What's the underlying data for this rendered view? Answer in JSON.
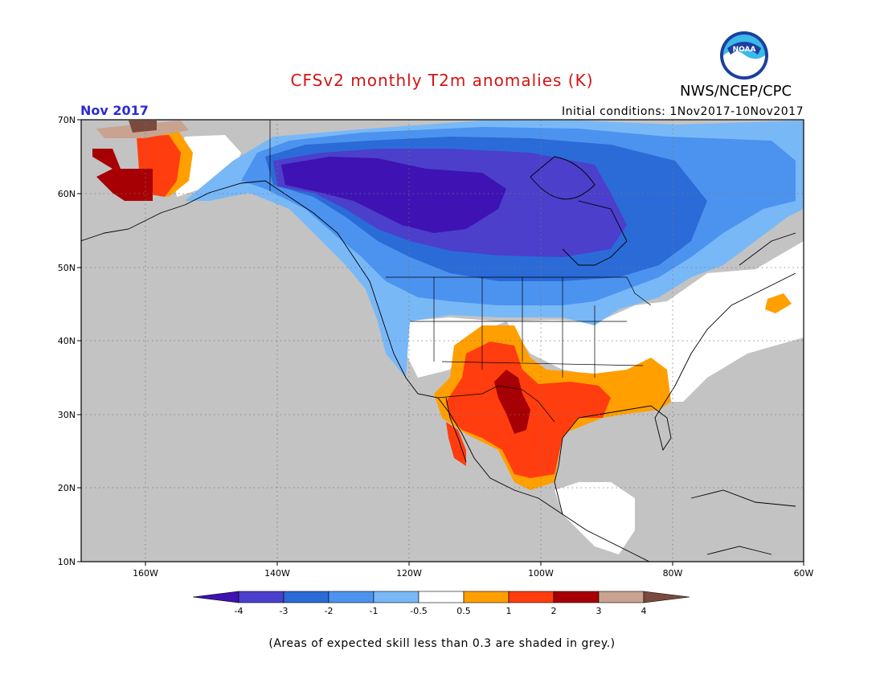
{
  "header": {
    "title": "CFSv2 monthly T2m anomalies (K)",
    "brand": "NWS/NCEP/CPC",
    "month": "Nov 2017",
    "initial_conditions": "Initial conditions: 1Nov2017-10Nov2017"
  },
  "logo": {
    "text": "NOAA",
    "icon": "noaa-logo"
  },
  "map": {
    "region": "North America",
    "lat_labels": [
      "70N",
      "60N",
      "50N",
      "40N",
      "30N",
      "20N",
      "10N"
    ],
    "lon_labels": [
      "160W",
      "140W",
      "120W",
      "100W",
      "80W",
      "60W"
    ],
    "land_grey_color": "#c3c3c3",
    "ocean_grey_color": "#c3c3c3"
  },
  "colorbar": {
    "labels": [
      "-4",
      "-3",
      "-2",
      "-1",
      "-0.5",
      "0.5",
      "1",
      "2",
      "3",
      "4"
    ],
    "colors": [
      "#3f12b3",
      "#4b3fcc",
      "#2b6bd8",
      "#4c93ef",
      "#79b8f7",
      "#ffffff",
      "#ff9f00",
      "#ff3d0f",
      "#a60004",
      "#c9a290",
      "#7a4a3e"
    ]
  },
  "footnote": "(Areas of expected skill less than 0.3 are shaded in grey.)"
}
